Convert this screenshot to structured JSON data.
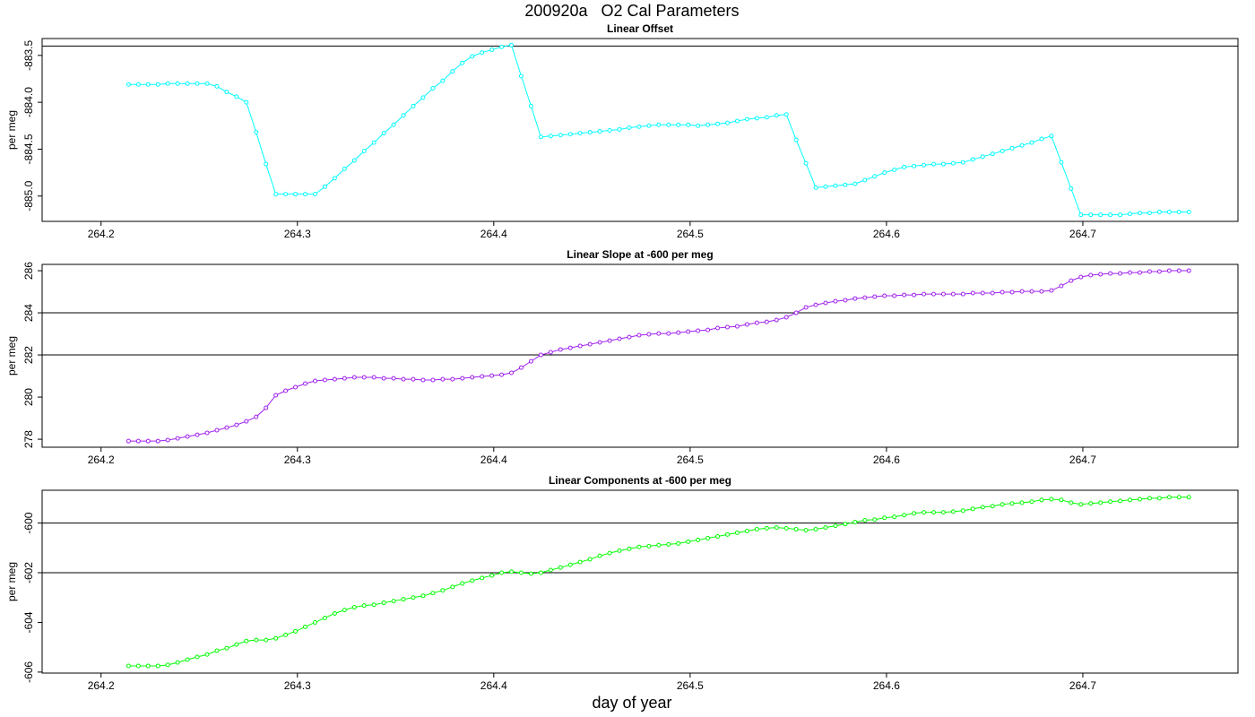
{
  "title": "200920a   O2 Cal Parameters",
  "xlabel": "day of year",
  "chart_data": [
    {
      "type": "line",
      "title": "Linear Offset",
      "ylabel": "per meg",
      "color": "#00ffff",
      "xlim": [
        264.17,
        264.779
      ],
      "xticks": [
        264.2,
        264.3,
        264.4,
        264.5,
        264.6,
        264.7
      ],
      "ylim": [
        -885.27,
        -883.32
      ],
      "yticks": [
        -883.5,
        {
          "value": -884,
          "label": "-884.0"
        },
        -884.5,
        {
          "value": -885,
          "label": "-885.0"
        }
      ],
      "hlines": [
        -883.4
      ],
      "x": [
        264.214,
        264.219,
        264.224,
        264.229,
        264.234,
        264.239,
        264.244,
        264.249,
        264.254,
        264.259,
        264.264,
        264.269,
        264.274,
        264.279,
        264.284,
        264.289,
        264.294,
        264.299,
        264.304,
        264.309,
        264.314,
        264.319,
        264.324,
        264.329,
        264.334,
        264.339,
        264.344,
        264.349,
        264.354,
        264.359,
        264.364,
        264.369,
        264.374,
        264.379,
        264.384,
        264.389,
        264.394,
        264.399,
        264.404,
        264.409,
        264.414,
        264.419,
        264.424,
        264.429,
        264.434,
        264.439,
        264.444,
        264.449,
        264.454,
        264.459,
        264.464,
        264.469,
        264.474,
        264.479,
        264.484,
        264.489,
        264.494,
        264.499,
        264.504,
        264.509,
        264.514,
        264.519,
        264.524,
        264.529,
        264.534,
        264.539,
        264.544,
        264.549,
        264.554,
        264.559,
        264.564,
        264.569,
        264.574,
        264.579,
        264.584,
        264.589,
        264.594,
        264.599,
        264.604,
        264.609,
        264.614,
        264.619,
        264.624,
        264.629,
        264.634,
        264.639,
        264.644,
        264.649,
        264.654,
        264.659,
        264.664,
        264.669,
        264.674,
        264.679,
        264.684,
        264.689,
        264.694,
        264.699,
        264.704,
        264.709,
        264.714,
        264.719,
        264.724,
        264.729,
        264.734,
        264.739,
        264.744,
        264.749,
        264.754
      ],
      "values": [
        -883.81,
        -883.81,
        -883.81,
        -883.81,
        -883.8,
        -883.8,
        -883.8,
        -883.8,
        -883.8,
        -883.83,
        -883.89,
        -883.94,
        -884.0,
        -884.32,
        -884.66,
        -884.98,
        -884.98,
        -884.98,
        -884.98,
        -884.98,
        -884.9,
        -884.81,
        -884.71,
        -884.62,
        -884.52,
        -884.43,
        -884.33,
        -884.24,
        -884.14,
        -884.04,
        -883.95,
        -883.85,
        -883.77,
        -883.67,
        -883.58,
        -883.51,
        -883.47,
        -883.44,
        -883.41,
        -883.39,
        -883.72,
        -884.04,
        -884.37,
        -884.36,
        -884.35,
        -884.34,
        -884.33,
        -884.32,
        -884.31,
        -884.3,
        -884.29,
        -884.27,
        -884.26,
        -884.25,
        -884.24,
        -884.24,
        -884.24,
        -884.24,
        -884.25,
        -884.24,
        -884.23,
        -884.22,
        -884.2,
        -884.18,
        -884.17,
        -884.16,
        -884.14,
        -884.13,
        -884.4,
        -884.65,
        -884.91,
        -884.9,
        -884.89,
        -884.88,
        -884.87,
        -884.83,
        -884.79,
        -884.75,
        -884.72,
        -884.69,
        -884.68,
        -884.67,
        -884.66,
        -884.66,
        -884.65,
        -884.64,
        -884.61,
        -884.58,
        -884.55,
        -884.52,
        -884.49,
        -884.46,
        -884.43,
        -884.39,
        -884.36,
        -884.64,
        -884.92,
        -885.2,
        -885.2,
        -885.2,
        -885.2,
        -885.2,
        -885.19,
        -885.18,
        -885.18,
        -885.17,
        -885.17,
        -885.17,
        -885.17
      ]
    },
    {
      "type": "line",
      "title": "Linear Slope at -600 per meg",
      "ylabel": "per meg",
      "color": "#a020f0",
      "xlim": [
        264.17,
        264.779
      ],
      "xticks": [
        264.2,
        264.3,
        264.4,
        264.5,
        264.6,
        264.7
      ],
      "ylim": [
        277.62,
        286.3
      ],
      "yticks": [
        278,
        280,
        282,
        284,
        286
      ],
      "hlines": [
        282,
        284
      ],
      "x": [
        264.214,
        264.219,
        264.224,
        264.229,
        264.234,
        264.239,
        264.244,
        264.249,
        264.254,
        264.259,
        264.264,
        264.269,
        264.274,
        264.279,
        264.284,
        264.289,
        264.294,
        264.299,
        264.304,
        264.309,
        264.314,
        264.319,
        264.324,
        264.329,
        264.334,
        264.339,
        264.344,
        264.349,
        264.354,
        264.359,
        264.364,
        264.369,
        264.374,
        264.379,
        264.384,
        264.389,
        264.394,
        264.399,
        264.404,
        264.409,
        264.414,
        264.419,
        264.424,
        264.429,
        264.434,
        264.439,
        264.444,
        264.449,
        264.454,
        264.459,
        264.464,
        264.469,
        264.474,
        264.479,
        264.484,
        264.489,
        264.494,
        264.499,
        264.504,
        264.509,
        264.514,
        264.519,
        264.524,
        264.529,
        264.534,
        264.539,
        264.544,
        264.549,
        264.554,
        264.559,
        264.564,
        264.569,
        264.574,
        264.579,
        264.584,
        264.589,
        264.594,
        264.599,
        264.604,
        264.609,
        264.614,
        264.619,
        264.624,
        264.629,
        264.634,
        264.639,
        264.644,
        264.649,
        264.654,
        264.659,
        264.664,
        264.669,
        264.674,
        264.679,
        264.684,
        264.689,
        264.694,
        264.699,
        264.704,
        264.709,
        264.714,
        264.719,
        264.724,
        264.729,
        264.734,
        264.739,
        264.744,
        264.749,
        264.754
      ],
      "values": [
        277.91,
        277.91,
        277.91,
        277.91,
        277.96,
        278.04,
        278.13,
        278.21,
        278.3,
        278.43,
        278.55,
        278.68,
        278.85,
        279.06,
        279.49,
        280.09,
        280.3,
        280.47,
        280.64,
        280.77,
        280.81,
        280.85,
        280.89,
        280.94,
        280.94,
        280.94,
        280.89,
        280.89,
        280.85,
        280.85,
        280.81,
        280.81,
        280.85,
        280.85,
        280.89,
        280.94,
        280.98,
        281.02,
        281.06,
        281.15,
        281.4,
        281.7,
        282.0,
        282.13,
        282.26,
        282.34,
        282.43,
        282.51,
        282.6,
        282.68,
        282.77,
        282.85,
        282.94,
        282.98,
        283.02,
        283.02,
        283.06,
        283.11,
        283.15,
        283.19,
        283.28,
        283.32,
        283.36,
        283.45,
        283.53,
        283.57,
        283.66,
        283.79,
        284.0,
        284.26,
        284.38,
        284.47,
        284.55,
        284.6,
        284.68,
        284.72,
        284.77,
        284.81,
        284.81,
        284.85,
        284.85,
        284.89,
        284.89,
        284.89,
        284.89,
        284.89,
        284.94,
        284.94,
        284.94,
        284.98,
        284.98,
        285.02,
        285.02,
        285.02,
        285.06,
        285.28,
        285.53,
        285.7,
        285.79,
        285.83,
        285.87,
        285.87,
        285.91,
        285.91,
        285.96,
        285.96,
        286.0,
        286.0,
        286.0
      ]
    },
    {
      "type": "line",
      "title": "Linear Components at -600 per meg",
      "ylabel": "per meg",
      "color": "#00ff00",
      "xlim": [
        264.17,
        264.779
      ],
      "xticks": [
        264.2,
        264.3,
        264.4,
        264.5,
        264.6,
        264.7
      ],
      "ylim": [
        -606.04,
        -598.68
      ],
      "yticks": [
        -600,
        -602,
        -604,
        -606
      ],
      "hlines": [
        -600,
        -602
      ],
      "x": [
        264.214,
        264.219,
        264.224,
        264.229,
        264.234,
        264.239,
        264.244,
        264.249,
        264.254,
        264.259,
        264.264,
        264.269,
        264.274,
        264.279,
        264.284,
        264.289,
        264.294,
        264.299,
        264.304,
        264.309,
        264.314,
        264.319,
        264.324,
        264.329,
        264.334,
        264.339,
        264.344,
        264.349,
        264.354,
        264.359,
        264.364,
        264.369,
        264.374,
        264.379,
        264.384,
        264.389,
        264.394,
        264.399,
        264.404,
        264.409,
        264.414,
        264.419,
        264.424,
        264.429,
        264.434,
        264.439,
        264.444,
        264.449,
        264.454,
        264.459,
        264.464,
        264.469,
        264.474,
        264.479,
        264.484,
        264.489,
        264.494,
        264.499,
        264.504,
        264.509,
        264.514,
        264.519,
        264.524,
        264.529,
        264.534,
        264.539,
        264.544,
        264.549,
        264.554,
        264.559,
        264.564,
        264.569,
        264.574,
        264.579,
        264.584,
        264.589,
        264.594,
        264.599,
        264.604,
        264.609,
        264.614,
        264.619,
        264.624,
        264.629,
        264.634,
        264.639,
        264.644,
        264.649,
        264.654,
        264.659,
        264.664,
        264.669,
        264.674,
        264.679,
        264.684,
        264.689,
        264.694,
        264.699,
        264.704,
        264.709,
        264.714,
        264.719,
        264.724,
        264.729,
        264.734,
        264.739,
        264.744,
        264.749,
        264.754
      ],
      "values": [
        -605.75,
        -605.75,
        -605.75,
        -605.75,
        -605.71,
        -605.61,
        -605.5,
        -605.39,
        -605.29,
        -605.14,
        -605.04,
        -604.89,
        -604.75,
        -604.71,
        -604.71,
        -604.64,
        -604.5,
        -604.36,
        -604.18,
        -604.0,
        -603.82,
        -603.64,
        -603.5,
        -603.39,
        -603.32,
        -603.29,
        -603.21,
        -603.14,
        -603.07,
        -603.0,
        -602.93,
        -602.82,
        -602.71,
        -602.57,
        -602.43,
        -602.32,
        -602.21,
        -602.11,
        -602.0,
        -601.96,
        -602.0,
        -602.04,
        -602.0,
        -601.89,
        -601.79,
        -601.68,
        -601.57,
        -601.46,
        -601.32,
        -601.21,
        -601.11,
        -601.04,
        -600.96,
        -600.93,
        -600.89,
        -600.86,
        -600.82,
        -600.75,
        -600.68,
        -600.61,
        -600.54,
        -600.46,
        -600.39,
        -600.32,
        -600.25,
        -600.21,
        -600.18,
        -600.21,
        -600.25,
        -600.29,
        -600.25,
        -600.18,
        -600.11,
        -600.04,
        -599.96,
        -599.89,
        -599.86,
        -599.79,
        -599.75,
        -599.68,
        -599.61,
        -599.57,
        -599.57,
        -599.57,
        -599.54,
        -599.5,
        -599.43,
        -599.36,
        -599.32,
        -599.25,
        -599.21,
        -599.18,
        -599.14,
        -599.07,
        -599.04,
        -599.07,
        -599.18,
        -599.25,
        -599.21,
        -599.18,
        -599.14,
        -599.11,
        -599.07,
        -599.04,
        -599.0,
        -599.0,
        -598.96,
        -598.96,
        -598.96
      ]
    }
  ]
}
